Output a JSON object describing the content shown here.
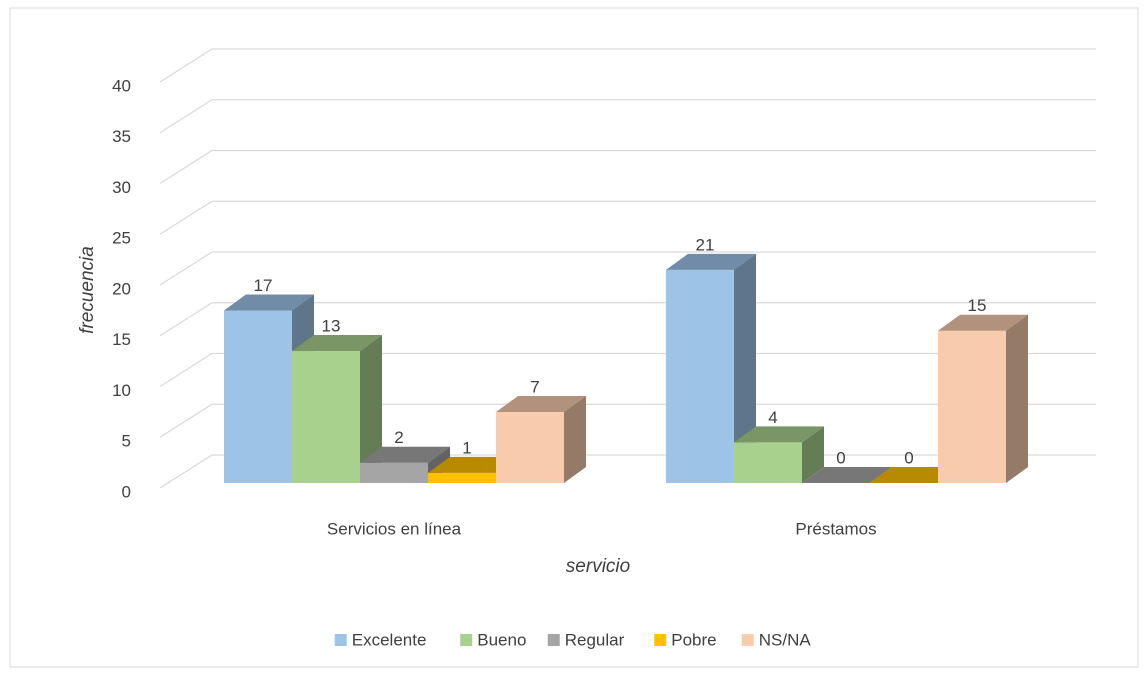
{
  "chart_data": {
    "type": "bar3d",
    "x_label": "servicio",
    "y_label": "frecuencia",
    "categories": [
      "Servicios en línea",
      "Préstamos"
    ],
    "series": [
      {
        "name": "Excelente",
        "color": "#9dc3e6",
        "values": [
          17,
          21
        ]
      },
      {
        "name": "Bueno",
        "color": "#a9d18e",
        "values": [
          13,
          4
        ]
      },
      {
        "name": "Regular",
        "color": "#a5a5a5",
        "values": [
          2,
          0
        ]
      },
      {
        "name": "Pobre",
        "color": "#ffc000",
        "values": [
          1,
          0
        ]
      },
      {
        "name": "NS/NA",
        "color": "#f8cbad",
        "values": [
          7,
          15
        ]
      }
    ],
    "ylim": [
      0,
      40
    ],
    "yticks": [
      0,
      5,
      10,
      15,
      20,
      25,
      30,
      35,
      40
    ],
    "grid": true,
    "legend": "bottom"
  }
}
